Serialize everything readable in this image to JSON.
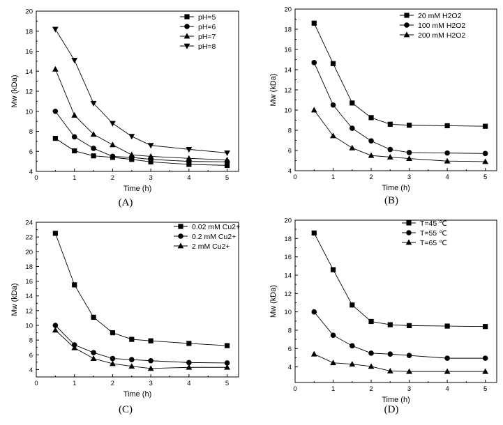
{
  "chart_data": [
    {
      "type": "line",
      "panel_label": "(A)",
      "xlabel": "Time (h)",
      "ylabel": "Mw (kDa)",
      "xlim": [
        0,
        5.3
      ],
      "ylim": [
        4,
        20
      ],
      "xticks": [
        0,
        1,
        2,
        3,
        4,
        5
      ],
      "yticks": [
        4,
        6,
        8,
        10,
        12,
        14,
        16,
        18,
        20
      ],
      "grid": false,
      "legend_position": "top-right",
      "x": [
        0.5,
        1,
        1.5,
        2,
        2.5,
        3,
        4,
        5
      ],
      "series": [
        {
          "name": "pH=5",
          "marker": "square",
          "values": [
            7.3,
            6.05,
            5.55,
            5.4,
            5.2,
            4.95,
            4.7,
            4.6
          ]
        },
        {
          "name": "pH=6",
          "marker": "circle",
          "values": [
            10.0,
            7.45,
            6.3,
            5.5,
            5.4,
            5.2,
            5.0,
            4.95
          ]
        },
        {
          "name": "pH=7",
          "marker": "triangle-up",
          "values": [
            14.2,
            9.6,
            7.7,
            6.65,
            5.65,
            5.5,
            5.3,
            5.15
          ]
        },
        {
          "name": "pH=8",
          "marker": "triangle-down",
          "values": [
            18.2,
            15.1,
            10.8,
            8.8,
            7.5,
            6.6,
            6.2,
            5.85
          ]
        }
      ]
    },
    {
      "type": "line",
      "panel_label": "(B)",
      "xlabel": "Time (h)",
      "ylabel": "Mw (kDa)",
      "xlim": [
        0,
        5.3
      ],
      "ylim": [
        4,
        20
      ],
      "xticks": [
        0,
        1,
        2,
        3,
        4,
        5
      ],
      "yticks": [
        4,
        6,
        8,
        10,
        12,
        14,
        16,
        18,
        20
      ],
      "grid": false,
      "legend_position": "top-right",
      "x": [
        0.5,
        1,
        1.5,
        2,
        2.5,
        3,
        4,
        5
      ],
      "series": [
        {
          "name": "20 mM H2O2",
          "marker": "square",
          "values": [
            18.6,
            14.6,
            10.7,
            9.25,
            8.6,
            8.5,
            8.45,
            8.4
          ]
        },
        {
          "name": "100 mM H2O2",
          "marker": "circle",
          "values": [
            14.7,
            10.5,
            8.2,
            6.95,
            6.1,
            5.8,
            5.75,
            5.7
          ]
        },
        {
          "name": "200 mM H2O2",
          "marker": "triangle-up",
          "values": [
            10.0,
            7.45,
            6.25,
            5.5,
            5.35,
            5.2,
            4.95,
            4.9
          ]
        }
      ]
    },
    {
      "type": "line",
      "panel_label": "(C)",
      "xlabel": "Time (h)",
      "ylabel": "Mw (kDa)",
      "xlim": [
        0,
        5.3
      ],
      "ylim": [
        3,
        24
      ],
      "xticks": [
        0,
        1,
        2,
        3,
        4,
        5
      ],
      "yticks": [
        4,
        6,
        8,
        10,
        12,
        14,
        16,
        18,
        20,
        22,
        24
      ],
      "grid": false,
      "legend_position": "top-right",
      "x": [
        0.5,
        1,
        1.5,
        2,
        2.5,
        3,
        4,
        5
      ],
      "series": [
        {
          "name": "0.02 mM Cu2+",
          "marker": "square",
          "values": [
            22.5,
            15.5,
            11.1,
            9.0,
            8.1,
            7.9,
            7.55,
            7.25
          ]
        },
        {
          "name": "0.2 mM Cu2+",
          "marker": "circle",
          "values": [
            10.0,
            7.35,
            6.3,
            5.5,
            5.35,
            5.2,
            4.95,
            4.9
          ]
        },
        {
          "name": "2 mM Cu2+",
          "marker": "triangle-up",
          "values": [
            9.35,
            6.95,
            5.5,
            4.8,
            4.45,
            4.15,
            4.3,
            4.3
          ]
        }
      ]
    },
    {
      "type": "line",
      "panel_label": "(D)",
      "xlabel": "Time (h)",
      "ylabel": "Mw (kDa)",
      "xlim": [
        0,
        5.3
      ],
      "ylim": [
        2.3,
        20
      ],
      "xticks": [
        0,
        1,
        2,
        3,
        4,
        5
      ],
      "yticks": [
        4,
        6,
        8,
        10,
        12,
        14,
        16,
        18,
        20
      ],
      "grid": false,
      "legend_position": "top-right",
      "x": [
        0.5,
        1,
        1.5,
        2,
        2.5,
        3,
        4,
        5
      ],
      "series": [
        {
          "name": "T=45 ℃",
          "marker": "square",
          "values": [
            18.6,
            14.6,
            10.75,
            8.95,
            8.6,
            8.5,
            8.45,
            8.4
          ]
        },
        {
          "name": "T=55 ℃",
          "marker": "circle",
          "values": [
            10.0,
            7.45,
            6.3,
            5.5,
            5.4,
            5.25,
            4.95,
            4.95
          ]
        },
        {
          "name": "T=65 ℃",
          "marker": "triangle-up",
          "values": [
            5.4,
            4.45,
            4.3,
            4.05,
            3.55,
            3.5,
            3.5,
            3.5
          ]
        }
      ]
    }
  ]
}
